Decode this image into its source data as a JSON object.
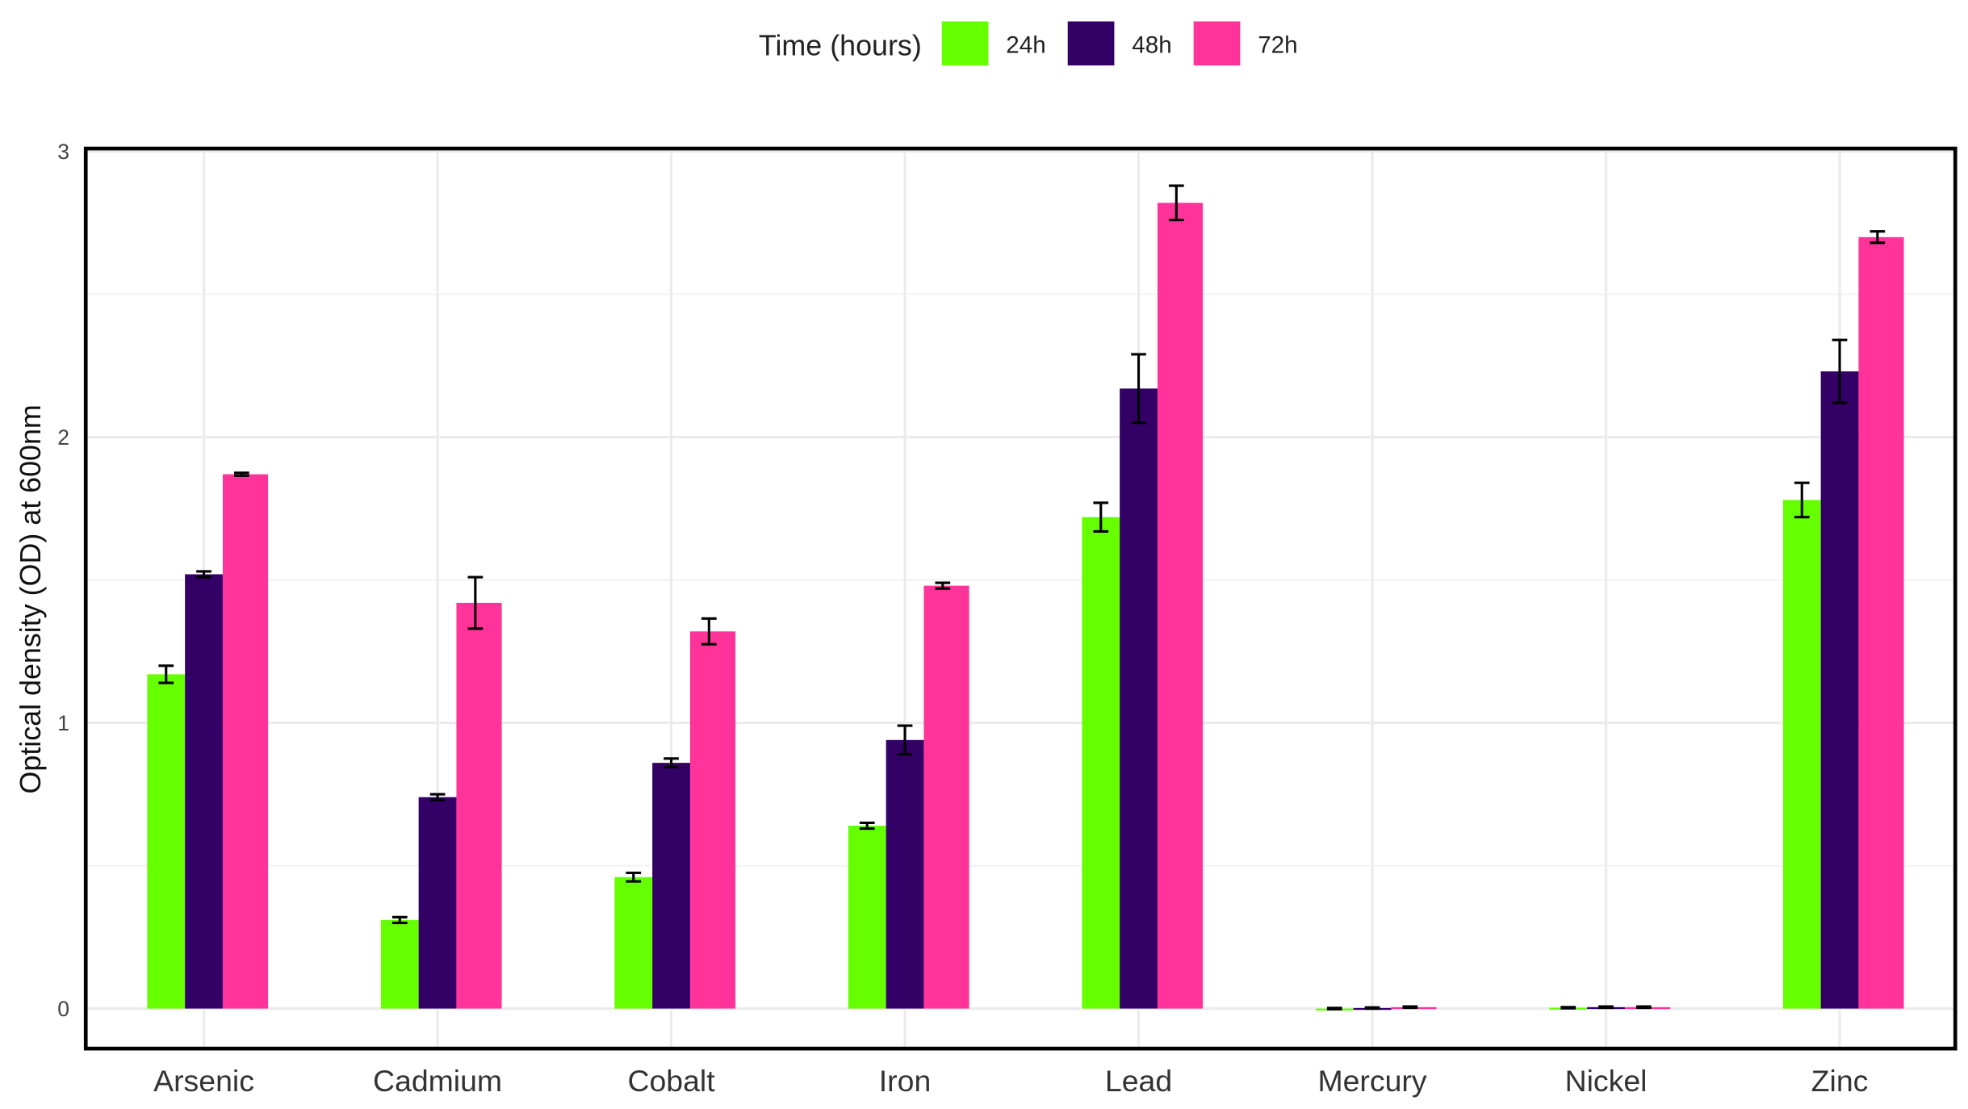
{
  "chart_data": {
    "type": "bar",
    "title": "",
    "xlabel": "",
    "ylabel": "Optical density (OD) at 600nm",
    "ylim": [
      -0.14,
      3.01
    ],
    "yticks": [
      0,
      1,
      2,
      3
    ],
    "grid": true,
    "legend": {
      "title": "Time (hours)",
      "placement": "top"
    },
    "categories": [
      "Arsenic",
      "Cadmium",
      "Cobalt",
      "Iron",
      "Lead",
      "Mercury",
      "Nickel",
      "Zinc"
    ],
    "series": [
      {
        "name": "24h",
        "color": "#66ff00",
        "values": [
          1.17,
          0.31,
          0.46,
          0.64,
          1.72,
          0.0,
          0.003,
          1.78
        ],
        "errors": [
          0.03,
          0.01,
          0.015,
          0.01,
          0.05,
          0.002,
          0.002,
          0.06
        ]
      },
      {
        "name": "48h",
        "color": "#330066",
        "values": [
          1.52,
          0.74,
          0.86,
          0.94,
          2.17,
          0.002,
          0.005,
          2.23
        ],
        "errors": [
          0.01,
          0.01,
          0.015,
          0.05,
          0.12,
          0.002,
          0.002,
          0.11
        ]
      },
      {
        "name": "72h",
        "color": "#ff3399",
        "values": [
          1.87,
          1.42,
          1.32,
          1.48,
          2.82,
          0.005,
          0.005,
          2.7
        ],
        "errors": [
          0.005,
          0.09,
          0.045,
          0.01,
          0.06,
          0.002,
          0.002,
          0.02
        ]
      }
    ]
  }
}
